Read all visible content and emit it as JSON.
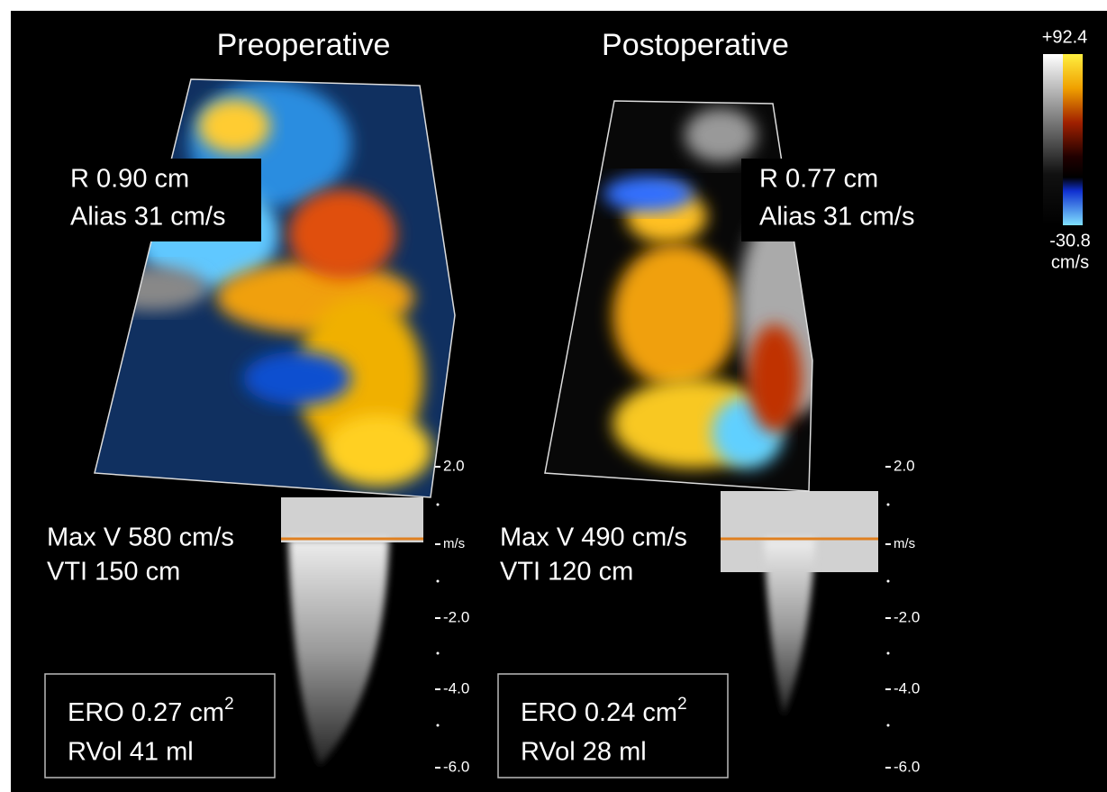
{
  "panels": [
    {
      "title": "Preoperative",
      "flow": {
        "radius": "R 0.90 cm",
        "alias": "Alias 31 cm/s"
      },
      "doppler": {
        "max_v": "Max V 580 cm/s",
        "vti": "VTI 150 cm"
      },
      "result": {
        "ero": "ERO 0.27 cm",
        "ero_exp": "2",
        "rvol": "RVol 41 ml"
      },
      "scale": [
        "2.0",
        "m/s",
        "-2.0",
        "-4.0",
        "-6.0"
      ]
    },
    {
      "title": "Postoperative",
      "flow": {
        "radius": "R 0.77 cm",
        "alias": "Alias 31 cm/s"
      },
      "doppler": {
        "max_v": "Max V 490 cm/s",
        "vti": "VTI 120 cm"
      },
      "result": {
        "ero": "ERO 0.24 cm",
        "ero_exp": "2",
        "rvol": "RVol 28 ml"
      },
      "scale": [
        "2.0",
        "m/s",
        "-2.0",
        "-4.0",
        "-6.0"
      ]
    }
  ],
  "color_bar": {
    "max": "+92.4",
    "min": "-30.8",
    "unit": "cm/s"
  }
}
